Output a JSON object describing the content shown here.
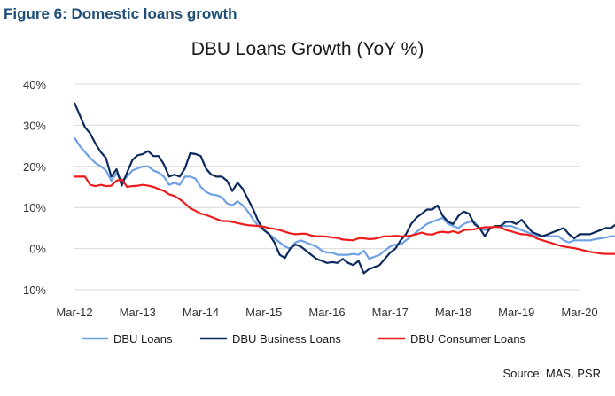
{
  "heading": "Figure 6: Domestic loans growth",
  "source": "Source: MAS, PSR",
  "chart_data": {
    "type": "line",
    "title": "DBU Loans Growth (YoY %)",
    "xlabel": "",
    "ylabel": "",
    "x_tick_labels": [
      "Mar-12",
      "Mar-13",
      "Mar-14",
      "Mar-15",
      "Mar-16",
      "Mar-17",
      "Mar-18",
      "Mar-19",
      "Mar-20"
    ],
    "y_tick_labels": [
      "-10%",
      "0%",
      "10%",
      "20%",
      "30%",
      "40%"
    ],
    "ylim": [
      -10,
      40
    ],
    "grid": "horizontal",
    "legend": "bottom",
    "months_from": "Mar-12",
    "series": [
      {
        "name": "DBU Loans",
        "color": "#6fa0e6",
        "values": [
          27,
          25,
          23.5,
          22,
          20.8,
          20,
          19,
          16.5,
          18.3,
          16.5,
          17.5,
          19,
          19.5,
          20,
          20,
          19,
          18.5,
          17.5,
          15.5,
          16,
          15.5,
          17.5,
          17.5,
          17,
          15,
          13.8,
          13.2,
          13,
          12.5,
          11,
          10.5,
          11.5,
          10.5,
          9,
          7,
          5.5,
          4.5,
          3.5,
          2.5,
          1.5,
          0.5,
          0,
          1.5,
          2,
          1.5,
          1,
          0.5,
          -0.5,
          -1,
          -1,
          -1.5,
          -1.5,
          -1.5,
          -1.3,
          -1.5,
          -0.5,
          -2.5,
          -2,
          -1.5,
          -0.5,
          0.5,
          1,
          1,
          2,
          3,
          4,
          5,
          6,
          6.5,
          7,
          7.5,
          6,
          5.5,
          5,
          6,
          6.5,
          6.5,
          5,
          4.5,
          5,
          5.5,
          5.5,
          5.5,
          5.5,
          5,
          4.5,
          4,
          3.5,
          3,
          3,
          3,
          3,
          3,
          2,
          1.5,
          2,
          2,
          2,
          2,
          2.3,
          2.5,
          2.7,
          3,
          3,
          3,
          2.8,
          3,
          2.3
        ]
      },
      {
        "name": "DBU Business Loans",
        "color": "#0d2a5e",
        "values": [
          35.5,
          32.5,
          29.5,
          28,
          25.5,
          23.5,
          22,
          17.5,
          19.3,
          15.3,
          18.5,
          21.5,
          22.7,
          23,
          23.7,
          22.5,
          22.5,
          20.5,
          17.5,
          18,
          17.5,
          19.5,
          23.2,
          23,
          22.5,
          19.5,
          18,
          17.5,
          17.5,
          16.5,
          14,
          16,
          14.5,
          12,
          9.5,
          6.5,
          4.5,
          3.5,
          1.5,
          -1.5,
          -2.3,
          0,
          1,
          0.5,
          -0.5,
          -1.5,
          -2.5,
          -3,
          -3.5,
          -3.3,
          -3.5,
          -2.5,
          -3.5,
          -4,
          -3,
          -6,
          -5,
          -4.5,
          -4,
          -2.5,
          -1,
          0,
          2,
          3.5,
          6,
          7.5,
          8.5,
          9.5,
          9.5,
          10.5,
          8,
          6.5,
          6,
          8,
          9,
          8.5,
          6,
          5,
          3,
          5,
          5.5,
          5.5,
          6.5,
          6.5,
          6,
          7,
          5.5,
          4,
          3.5,
          3,
          3.5,
          4,
          4.5,
          5,
          3.5,
          2.5,
          3.5,
          3.5,
          3.5,
          4,
          4.5,
          5,
          5,
          6,
          6,
          5.5,
          5.7,
          5.4
        ]
      },
      {
        "name": "DBU Consumer Loans",
        "color": "#ee1c1c",
        "values": [
          17.5,
          17.5,
          17.5,
          15.5,
          15.2,
          15.5,
          15.2,
          15.3,
          16.5,
          16.8,
          15,
          15.2,
          15.3,
          15.5,
          15.3,
          15,
          14.5,
          14,
          13.2,
          12.8,
          12,
          11,
          9.8,
          9.2,
          8.5,
          8.2,
          7.7,
          7.2,
          6.7,
          6.7,
          6.5,
          6.2,
          5.9,
          5.7,
          5.6,
          5.5,
          5.3,
          5,
          4.8,
          4.5,
          4.1,
          3.7,
          3.5,
          3.6,
          3.6,
          3.2,
          3,
          3,
          2.9,
          2.7,
          2.6,
          2.2,
          2.1,
          2,
          2.5,
          2.5,
          2.3,
          2.4,
          2.7,
          3,
          3,
          3.1,
          3,
          3,
          3.2,
          3.5,
          3.9,
          3.5,
          3.4,
          3.9,
          4.1,
          3.9,
          4.2,
          3.8,
          4.5,
          4.6,
          4.7,
          5,
          5.2,
          5.2,
          5.3,
          5.2,
          4.5,
          4.2,
          3.8,
          3.5,
          3.4,
          3.1,
          2.4,
          2,
          1.6,
          1.2,
          0.8,
          0.5,
          0.3,
          0.1,
          -0.2,
          -0.5,
          -0.8,
          -1,
          -1.2,
          -1.3,
          -1.3,
          -1.3,
          -1.2,
          -1.3,
          -0.9,
          -1.1,
          -2.4
        ]
      }
    ]
  }
}
